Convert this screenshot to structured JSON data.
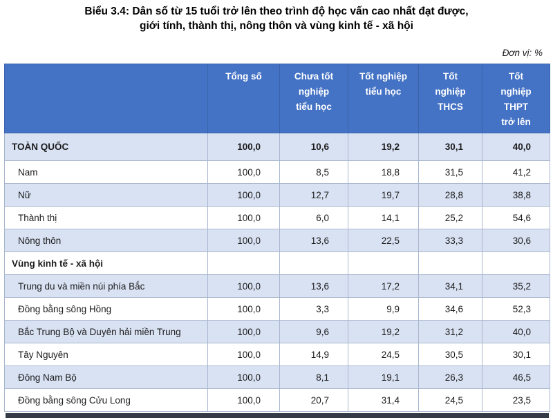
{
  "title": {
    "line1": "Biểu 3.4: Dân số từ 15 tuổi trở lên theo trình độ học vấn cao nhất đạt được,",
    "line2": "giới tính, thành thị, nông thôn và vùng kinh tế - xã hội"
  },
  "unit_label": "Đơn vị: %",
  "table": {
    "columns": [
      "",
      "Tổng số",
      [
        "Chưa tốt",
        "nghiệp",
        "tiểu học"
      ],
      [
        "Tốt nghiệp",
        "tiểu học"
      ],
      [
        "Tốt",
        "nghiệp",
        "THCS"
      ],
      [
        "Tốt",
        "nghiệp",
        "THPT",
        "trở lên"
      ]
    ],
    "rows": [
      {
        "label": "TOÀN QUỐC",
        "values": [
          "100,0",
          "10,6",
          "19,2",
          "30,1",
          "40,0"
        ],
        "bold": true,
        "shaded": true,
        "total": true,
        "indent": false
      },
      {
        "label": "Nam",
        "values": [
          "100,0",
          "8,5",
          "18,8",
          "31,5",
          "41,2"
        ],
        "indent": true
      },
      {
        "label": "Nữ",
        "values": [
          "100,0",
          "12,7",
          "19,7",
          "28,8",
          "38,8"
        ],
        "indent": true,
        "shaded": true
      },
      {
        "label": "Thành thị",
        "values": [
          "100,0",
          "6,0",
          "14,1",
          "25,2",
          "54,6"
        ],
        "indent": true
      },
      {
        "label": "Nông thôn",
        "values": [
          "100,0",
          "13,6",
          "22,5",
          "33,3",
          "30,6"
        ],
        "indent": true,
        "shaded": true
      },
      {
        "label": "Vùng kinh tế - xã hội",
        "values": [
          "",
          "",
          "",
          "",
          ""
        ],
        "bold": true,
        "indent": false
      },
      {
        "label": "Trung du và miền núi phía Bắc",
        "values": [
          "100,0",
          "13,6",
          "17,2",
          "34,1",
          "35,2"
        ],
        "indent": true,
        "shaded": true
      },
      {
        "label": "Đồng bằng sông Hồng",
        "values": [
          "100,0",
          "3,3",
          "9,9",
          "34,6",
          "52,3"
        ],
        "indent": true
      },
      {
        "label": "Bắc Trung Bộ và Duyên hải miền Trung",
        "values": [
          "100,0",
          "9,6",
          "19,2",
          "31,2",
          "40,0"
        ],
        "indent": true,
        "shaded": true
      },
      {
        "label": "Tây Nguyên",
        "values": [
          "100,0",
          "14,9",
          "24,5",
          "30,5",
          "30,1"
        ],
        "indent": true
      },
      {
        "label": "Đông Nam Bộ",
        "values": [
          "100,0",
          "8,1",
          "19,1",
          "26,3",
          "46,5"
        ],
        "indent": true,
        "shaded": true
      },
      {
        "label": "Đồng bằng sông Cửu Long",
        "values": [
          "100,0",
          "20,7",
          "31,4",
          "24,5",
          "23,5"
        ],
        "indent": true
      }
    ]
  },
  "colors": {
    "header_bg": "#4472C4",
    "header_text": "#FFFFFF",
    "shaded_row": "#D9E2F3",
    "row_border": "#A8B6CE",
    "bottom_bar": "#343B46"
  }
}
